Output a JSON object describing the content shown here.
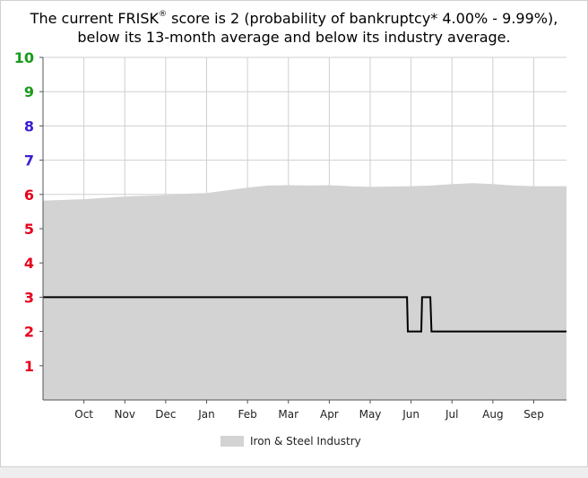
{
  "headline": {
    "line1_prefix": "The current FRISK",
    "line1_mark": "®",
    "line1_suffix": " score is 2 (probability of bankruptcy* 4.00% - 9.99%),",
    "line2": "below its 13-month average and below its industry average."
  },
  "chart_data": {
    "type": "area",
    "title": "",
    "xlabel": "",
    "ylabel": "",
    "ylim": [
      0,
      10
    ],
    "xlim": [
      0,
      12.8
    ],
    "grid": true,
    "legend_placement": "bottom",
    "y_ticks": [
      {
        "value": 1,
        "label": "1",
        "color": "#e8001c"
      },
      {
        "value": 2,
        "label": "2",
        "color": "#e8001c"
      },
      {
        "value": 3,
        "label": "3",
        "color": "#e8001c"
      },
      {
        "value": 4,
        "label": "4",
        "color": "#e8001c"
      },
      {
        "value": 5,
        "label": "5",
        "color": "#e8001c"
      },
      {
        "value": 6,
        "label": "6",
        "color": "#e8001c"
      },
      {
        "value": 7,
        "label": "7",
        "color": "#3c1fd0"
      },
      {
        "value": 8,
        "label": "8",
        "color": "#3c1fd0"
      },
      {
        "value": 9,
        "label": "9",
        "color": "#1a9a1a"
      },
      {
        "value": 10,
        "label": "10",
        "color": "#1a9a1a"
      }
    ],
    "x_ticks": [
      {
        "value": 1.0,
        "label": "Oct"
      },
      {
        "value": 2.0,
        "label": "Nov"
      },
      {
        "value": 3.0,
        "label": "Dec"
      },
      {
        "value": 4.0,
        "label": "Jan"
      },
      {
        "value": 5.0,
        "label": "Feb"
      },
      {
        "value": 6.0,
        "label": "Mar"
      },
      {
        "value": 7.0,
        "label": "Apr"
      },
      {
        "value": 8.0,
        "label": "May"
      },
      {
        "value": 9.0,
        "label": "Jun"
      },
      {
        "value": 10.0,
        "label": "Jul"
      },
      {
        "value": 11.0,
        "label": "Aug"
      },
      {
        "value": 12.0,
        "label": "Sep"
      }
    ],
    "series": [
      {
        "name": "Iron & Steel Industry",
        "kind": "area",
        "color": "#d3d3d3",
        "x": [
          0,
          0.5,
          1.0,
          1.5,
          2.0,
          2.5,
          3.0,
          3.5,
          4.0,
          4.5,
          5.0,
          5.5,
          6.0,
          6.5,
          7.0,
          7.5,
          8.0,
          8.5,
          9.0,
          9.5,
          10.0,
          10.5,
          11.0,
          11.5,
          12.0,
          12.8
        ],
        "y": [
          5.82,
          5.84,
          5.86,
          5.9,
          5.94,
          5.96,
          5.98,
          6.02,
          6.04,
          6.12,
          6.2,
          6.26,
          6.27,
          6.26,
          6.27,
          6.24,
          6.22,
          6.23,
          6.24,
          6.26,
          6.3,
          6.33,
          6.3,
          6.26,
          6.24,
          6.24
        ]
      },
      {
        "name": "FRISK score",
        "kind": "line",
        "color": "#000000",
        "x": [
          0,
          8.9,
          8.92,
          9.25,
          9.27,
          9.47,
          9.5,
          12.8
        ],
        "y": [
          3,
          3,
          2,
          2,
          3,
          3,
          2,
          2
        ]
      }
    ]
  },
  "legend": {
    "label": "Iron & Steel Industry",
    "color": "#d3d3d3"
  }
}
